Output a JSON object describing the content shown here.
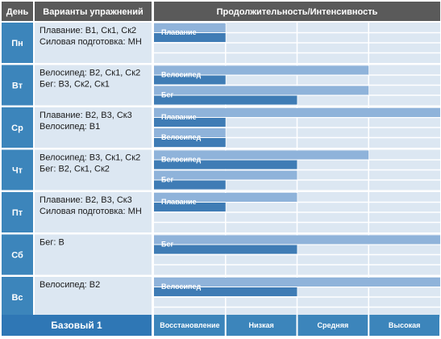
{
  "colors": {
    "header_bg": "#5a5a5a",
    "day_bg": "#3c85bb",
    "exercise_bg": "#dce7f2",
    "grid_bg": "#dce7f2",
    "grid_line": "#ffffff",
    "bar_light": "#8fb3da",
    "bar_dark": "#3f7cb5",
    "footer_bg": "#3c85bb",
    "footer_label_bg": "#2f77b5"
  },
  "header": {
    "day": "День",
    "exercise": "Варианты упражнений",
    "scale": "Продолжительность/Интенсивность"
  },
  "footer": {
    "label": "Базовый 1",
    "levels": [
      "Восстановление",
      "Низкая",
      "Средняя",
      "Высокая"
    ]
  },
  "chart_data": {
    "type": "bar",
    "scale_max": 4,
    "scale_levels": [
      "Восстановление",
      "Низкая",
      "Средняя",
      "Высокая"
    ],
    "rows": [
      {
        "day": "Пн",
        "exercises": [
          "Плавание: В1, Ск1, Ск2",
          "Силовая подготовка: МН"
        ],
        "bars": [
          {
            "name": "Плавание",
            "intensity": 1.0,
            "duration": 1.0
          },
          {
            "name": "",
            "intensity": 0,
            "duration": 0
          }
        ]
      },
      {
        "day": "Вт",
        "exercises": [
          "Велосипед: В2, Ск1, Ск2",
          "Бег: В3, Ск2, Ск1"
        ],
        "bars": [
          {
            "name": "Велосипед",
            "intensity": 3.0,
            "duration": 1.0
          },
          {
            "name": "Бег",
            "intensity": 3.0,
            "duration": 2.0
          }
        ]
      },
      {
        "day": "Ср",
        "exercises": [
          "Плавание: В2, В3, Ск3",
          "Велосипед: В1"
        ],
        "bars": [
          {
            "name": "Плавание",
            "intensity": 4.0,
            "duration": 1.0
          },
          {
            "name": "Велосипед",
            "intensity": 1.0,
            "duration": 1.0
          }
        ]
      },
      {
        "day": "Чт",
        "exercises": [
          "Велосипед: В3, Ск1, Ск2",
          "Бег: В2, Ск1, Ск2"
        ],
        "bars": [
          {
            "name": "Велосипед",
            "intensity": 3.0,
            "duration": 2.0
          },
          {
            "name": "Бег",
            "intensity": 2.0,
            "duration": 1.0
          }
        ]
      },
      {
        "day": "Пт",
        "exercises": [
          "Плавание: В2, В3, Ск3",
          "Силовая подготовка: МН"
        ],
        "bars": [
          {
            "name": "Плавание",
            "intensity": 2.0,
            "duration": 1.0
          },
          {
            "name": "",
            "intensity": 0,
            "duration": 0
          }
        ]
      },
      {
        "day": "Сб",
        "exercises": [
          "Бег: В"
        ],
        "bars": [
          {
            "name": "Бег",
            "intensity": 4.0,
            "duration": 2.0
          },
          {
            "name": "",
            "intensity": 0,
            "duration": 0
          }
        ]
      },
      {
        "day": "Вс",
        "exercises": [
          "Велосипед: В2"
        ],
        "bars": [
          {
            "name": "Велосипед",
            "intensity": 4.0,
            "duration": 2.0
          },
          {
            "name": "",
            "intensity": 0,
            "duration": 0
          }
        ]
      }
    ]
  }
}
